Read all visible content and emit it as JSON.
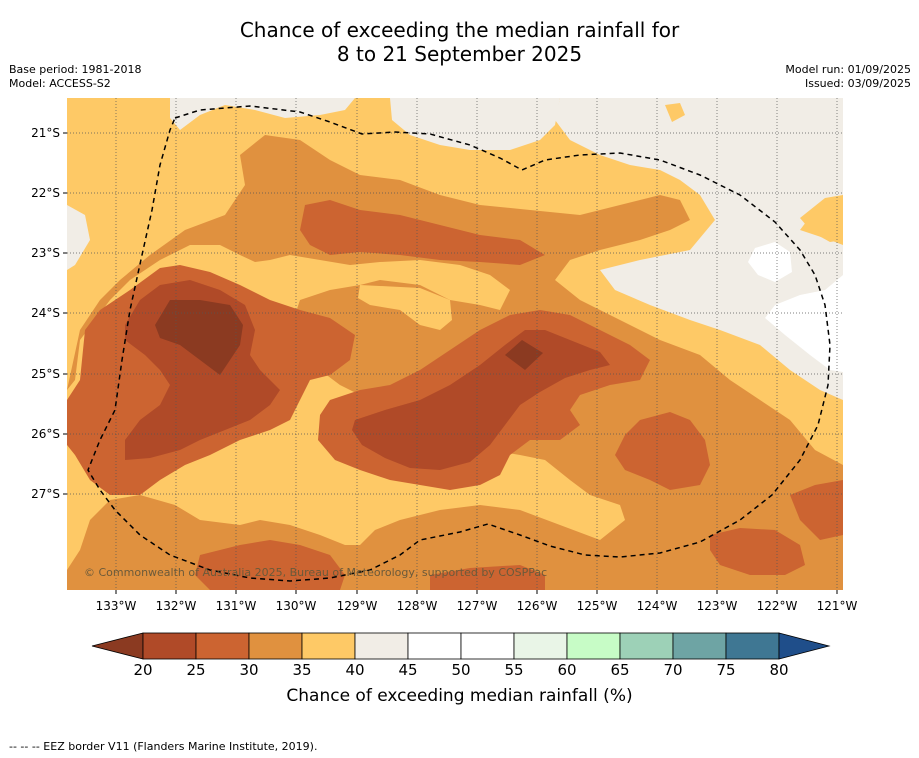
{
  "title": {
    "line1": "Chance of exceeding the median rainfall for",
    "line2": "8 to 21 September 2025"
  },
  "meta": {
    "base_period": "Base period: 1981-2018",
    "model": "Model: ACCESS-S2",
    "model_run": "Model run: 01/09/2025",
    "issued": "Issued: 03/09/2025"
  },
  "map": {
    "lat_labels": [
      "21°S",
      "22°S",
      "23°S",
      "24°S",
      "25°S",
      "26°S",
      "27°S"
    ],
    "lon_labels": [
      "133°W",
      "132°W",
      "131°W",
      "130°W",
      "129°W",
      "128°W",
      "127°W",
      "126°W",
      "125°W",
      "124°W",
      "123°W",
      "122°W",
      "121°W"
    ],
    "copyright": "© Commonwealth of Australia 2025, Bureau of Meteorology, supported by COSPPac",
    "grid": true,
    "eez_border": "dashed"
  },
  "colorbar": {
    "ticks": [
      "20",
      "25",
      "30",
      "35",
      "40",
      "45",
      "50",
      "55",
      "60",
      "65",
      "70",
      "75",
      "80"
    ],
    "colors": {
      "below_20": "#8b3a21",
      "20_25": "#b04a28",
      "25_30": "#cc6431",
      "30_35": "#e0913f",
      "35_40": "#fec966",
      "40_45": "#f1ede6",
      "45_50": "#ffffff",
      "50_55": "#ffffff",
      "55_60": "#e9f5e7",
      "60_65": "#c7fcc6",
      "65_70": "#9dd1b7",
      "70_75": "#6ea4a4",
      "75_80": "#3f7793",
      "above_80": "#1f4e8a"
    },
    "title": "Chance of exceeding median rainfall (%)"
  },
  "footer": "--  --  -- EEZ border V11 (Flanders Marine Institute, 2019)."
}
